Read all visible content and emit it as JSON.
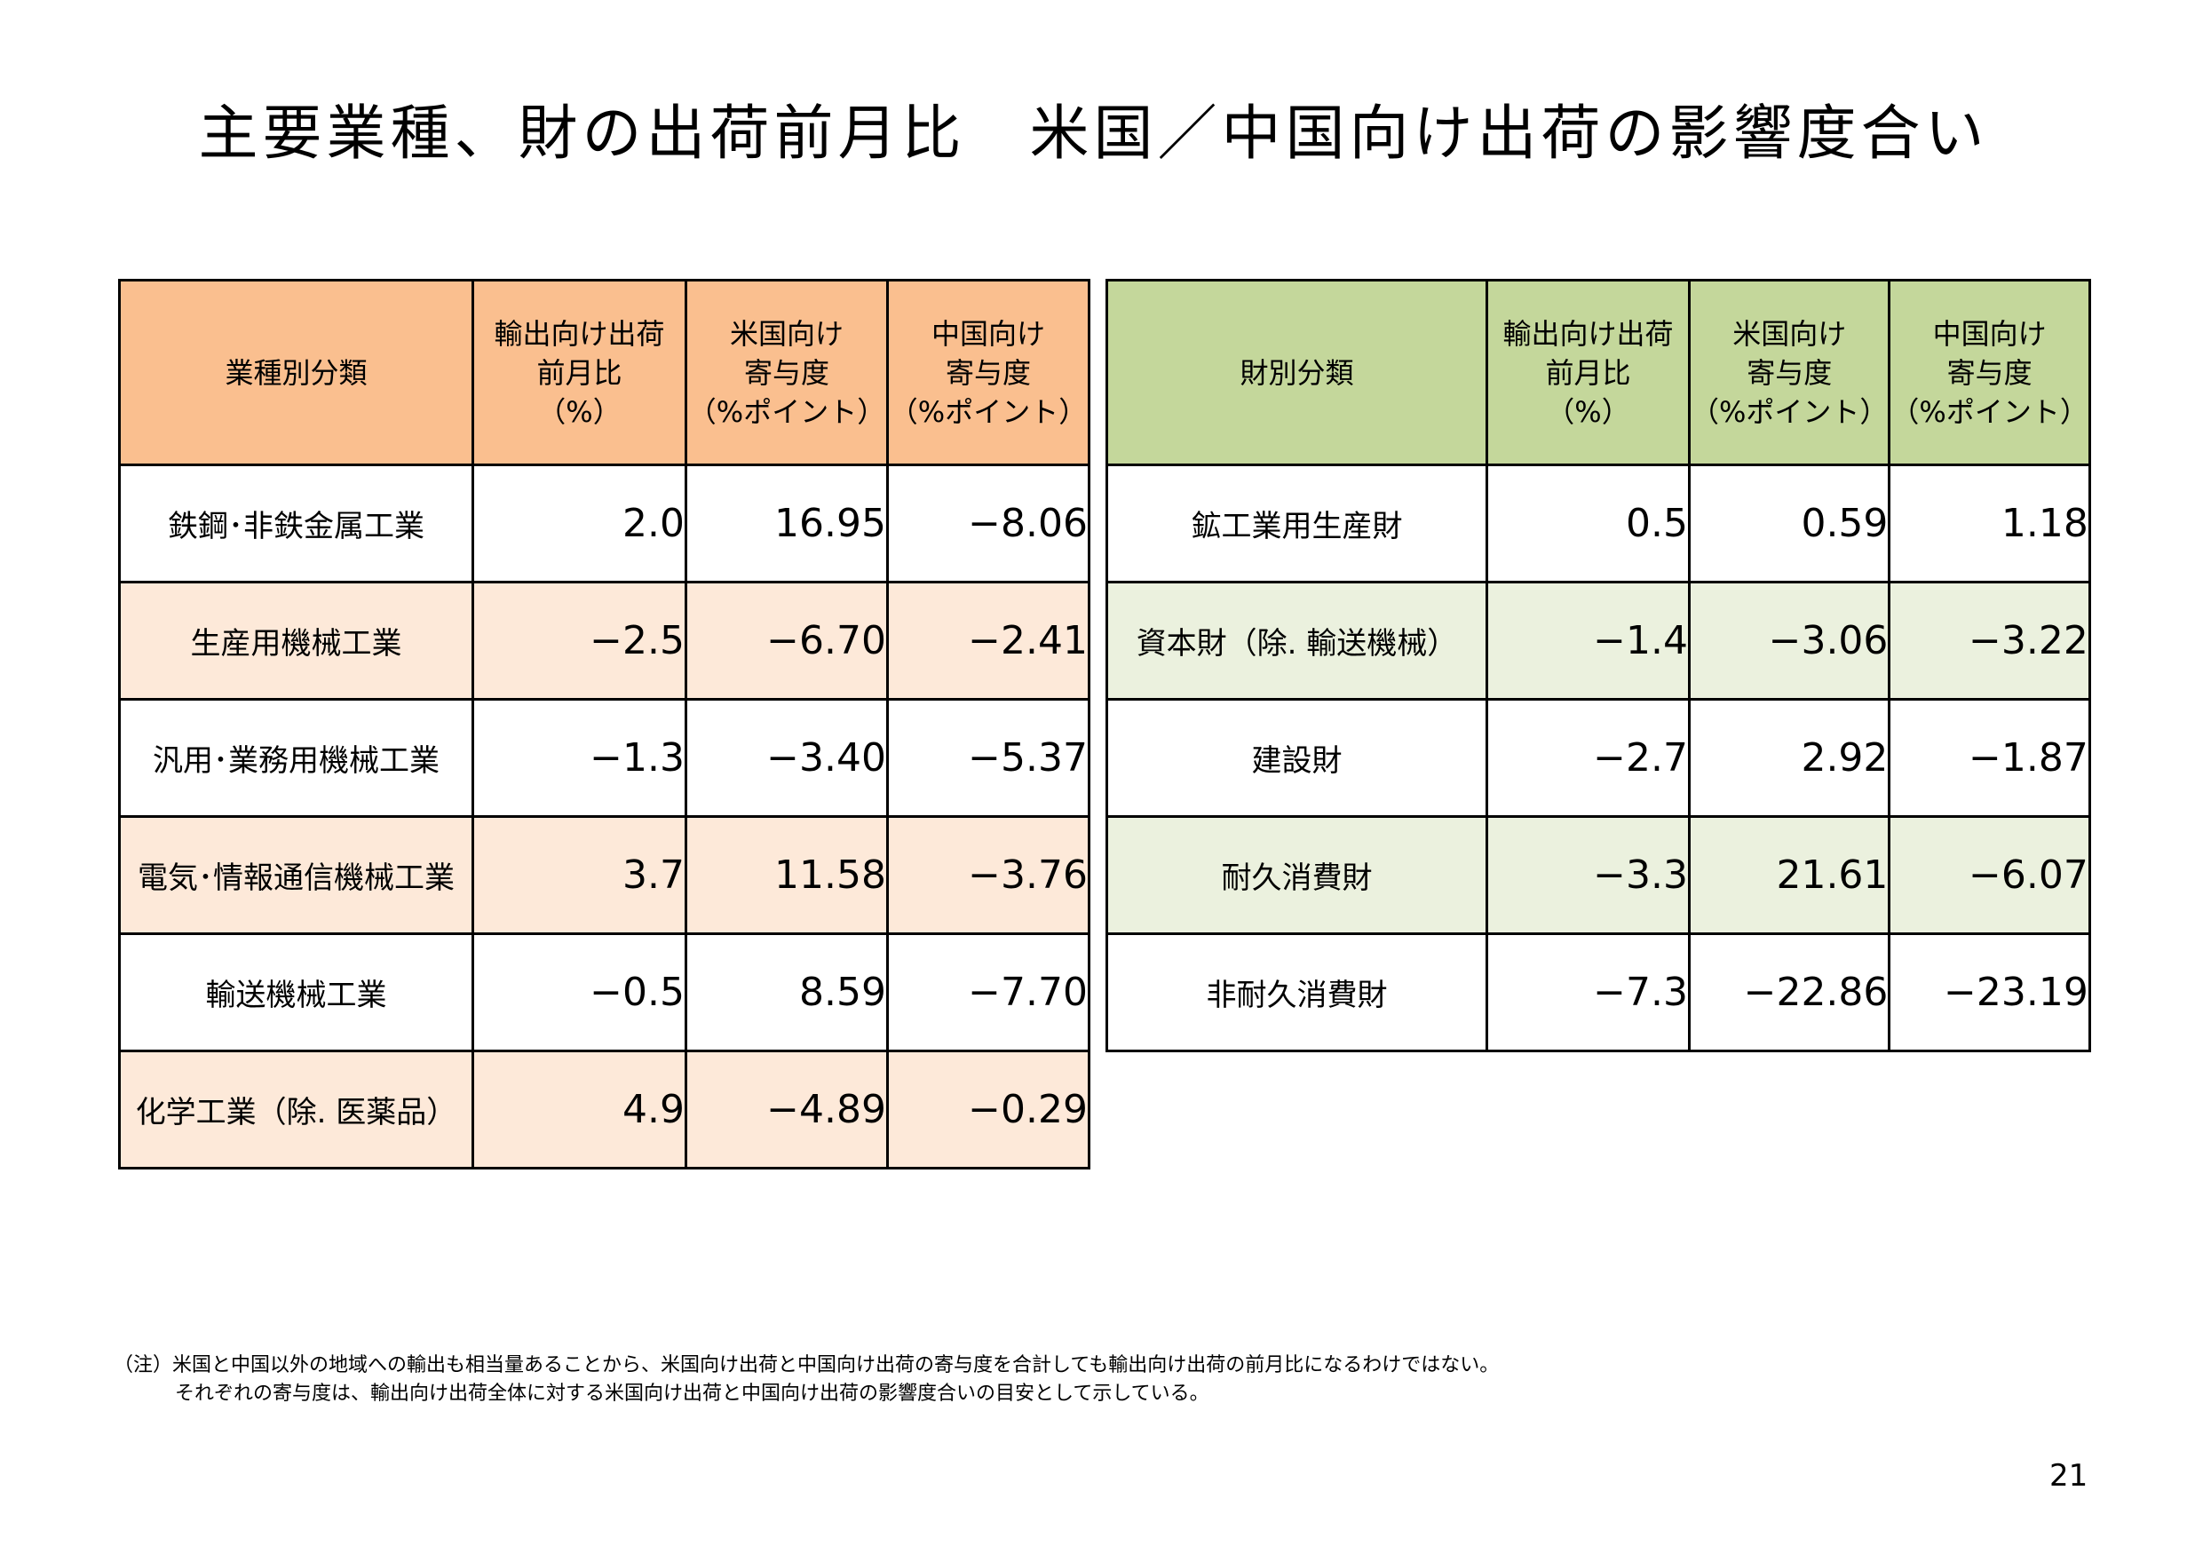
{
  "title": "主要業種、財の出荷前月比　米国／中国向け出荷の影響度合い",
  "industry_table": {
    "headers": [
      [
        "業種別分類"
      ],
      [
        "輸出向け出荷",
        "前月比",
        "（%）"
      ],
      [
        "米国向け",
        "寄与度",
        "（%ポイント）"
      ],
      [
        "中国向け",
        "寄与度",
        "（%ポイント）"
      ]
    ],
    "rows": [
      {
        "label": "鉄鋼･非鉄金属工業",
        "export": "2.0",
        "us": "16.95",
        "china": "−8.06"
      },
      {
        "label": "生産用機械工業",
        "export": "−2.5",
        "us": "−6.70",
        "china": "−2.41"
      },
      {
        "label": "汎用･業務用機械工業",
        "export": "−1.3",
        "us": "−3.40",
        "china": "−5.37"
      },
      {
        "label": "電気･情報通信機械工業",
        "export": "3.7",
        "us": "11.58",
        "china": "−3.76"
      },
      {
        "label": "輸送機械工業",
        "export": "−0.5",
        "us": "8.59",
        "china": "−7.70"
      },
      {
        "label": "化学工業（除. 医薬品）",
        "export": "4.9",
        "us": "−4.89",
        "china": "−0.29"
      }
    ]
  },
  "goods_table": {
    "headers": [
      [
        "財別分類"
      ],
      [
        "輸出向け出荷",
        "前月比",
        "（%）"
      ],
      [
        "米国向け",
        "寄与度",
        "（%ポイント）"
      ],
      [
        "中国向け",
        "寄与度",
        "（%ポイント）"
      ]
    ],
    "rows": [
      {
        "label": "鉱工業用生産財",
        "export": "0.5",
        "us": "0.59",
        "china": "1.18"
      },
      {
        "label": "資本財（除. 輸送機械）",
        "export": "−1.4",
        "us": "−3.06",
        "china": "−3.22"
      },
      {
        "label": "建設財",
        "export": "−2.7",
        "us": "2.92",
        "china": "−1.87"
      },
      {
        "label": "耐久消費財",
        "export": "−3.3",
        "us": "21.61",
        "china": "−6.07"
      },
      {
        "label": "非耐久消費財",
        "export": "−7.3",
        "us": "−22.86",
        "china": "−23.19"
      }
    ]
  },
  "note": {
    "line1": "（注）米国と中国以外の地域への輸出も相当量あることから、米国向け出荷と中国向け出荷の寄与度を合計しても輸出向け出荷の前月比になるわけではない。",
    "line2": "それぞれの寄与度は、輸出向け出荷全体に対する米国向け出荷と中国向け出荷の影響度合いの目安として示している。"
  },
  "page_number": "21"
}
